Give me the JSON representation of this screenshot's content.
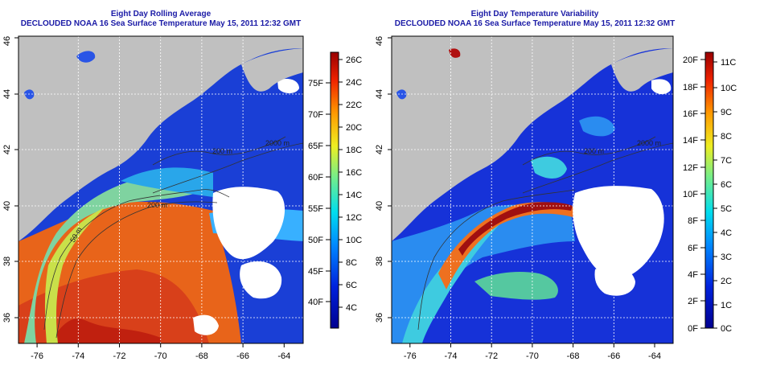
{
  "left_map": {
    "title_line1": "Eight Day Rolling Average",
    "title_line2": "DECLOUDED NOAA 16 Sea Surface Temperature May 15, 2011 12:32 GMT",
    "x_ticks": [
      "-76",
      "-74",
      "-72",
      "-70",
      "-68",
      "-66",
      "-64"
    ],
    "y_ticks": [
      "36",
      "38",
      "40",
      "42",
      "44",
      "46"
    ],
    "colorbar_left_labels": [
      "40F",
      "45F",
      "50F",
      "55F",
      "60F",
      "65F",
      "70F",
      "75F"
    ],
    "colorbar_right_labels": [
      "4C",
      "6C",
      "8C",
      "10C",
      "12C",
      "14C",
      "16C",
      "18C",
      "20C",
      "22C",
      "24C",
      "26C"
    ],
    "contour_labels": [
      "50 m",
      "200 m",
      "200 m",
      "2000 m"
    ]
  },
  "right_map": {
    "title_line1": "Eight Day Temperature Variability",
    "title_line2": "DECLOUDED NOAA 16 Sea Surface Temperature May 15, 2011 12:32 GMT",
    "x_ticks": [
      "-76",
      "-74",
      "-72",
      "-70",
      "-68",
      "-66",
      "-64"
    ],
    "y_ticks": [
      "36",
      "38",
      "40",
      "42",
      "44",
      "46"
    ],
    "colorbar_left_labels": [
      "0F",
      "2F",
      "4F",
      "6F",
      "8F",
      "10F",
      "12F",
      "14F",
      "16F",
      "18F",
      "20F"
    ],
    "colorbar_right_labels": [
      "0C",
      "1C",
      "2C",
      "3C",
      "4C",
      "5C",
      "6C",
      "7C",
      "8C",
      "9C",
      "10C",
      "11C"
    ],
    "contour_labels": [
      "200 m",
      "2000 m"
    ]
  },
  "colors": {
    "land": "#c0c0c0",
    "cloud": "#ffffff",
    "title": "#1a1aa6"
  }
}
